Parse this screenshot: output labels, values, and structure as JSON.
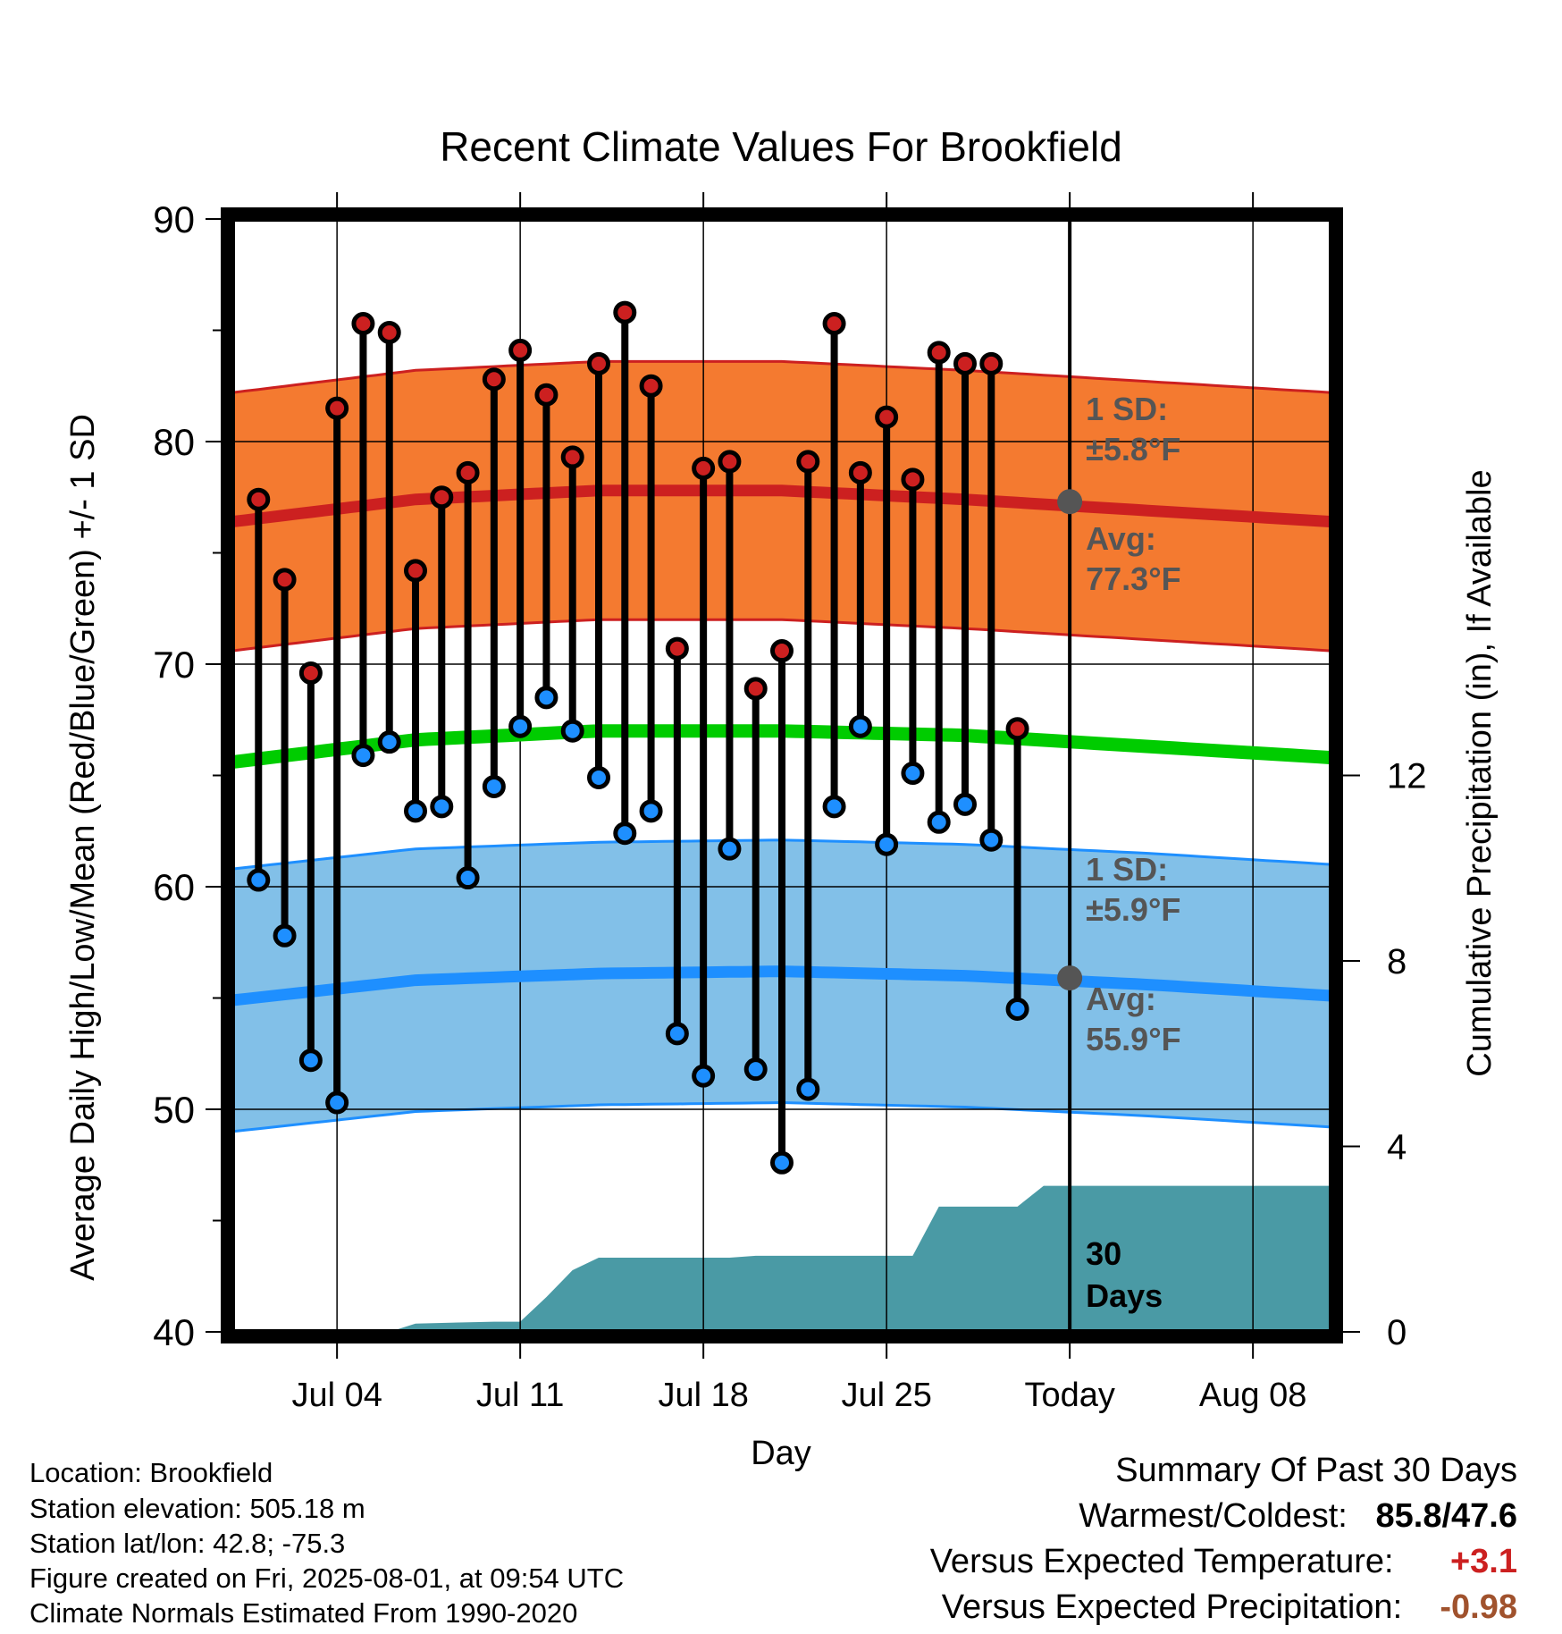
{
  "chart_data": {
    "type": "line",
    "title": "Recent Climate Values For Brookfield",
    "xlabel": "Day",
    "ylabel": "Average Daily High/Low/Mean (Red/Blue/Green) +/- 1 SD",
    "y2label": "Cumulative Precipitation (in), If Available",
    "ylim": [
      40,
      90
    ],
    "y2lim": [
      0,
      24
    ],
    "y_ticks": [
      40,
      50,
      60,
      70,
      80,
      90
    ],
    "y2_ticks": [
      0,
      4,
      8,
      12
    ],
    "xlim": [
      "2025-06-30",
      "2025-08-11"
    ],
    "x_ticks": [
      {
        "date": "2025-07-04",
        "label": "Jul 04"
      },
      {
        "date": "2025-07-11",
        "label": "Jul 11"
      },
      {
        "date": "2025-07-18",
        "label": "Jul 18"
      },
      {
        "date": "2025-07-25",
        "label": "Jul 25"
      },
      {
        "date": "2025-08-01",
        "label": "Today"
      },
      {
        "date": "2025-08-08",
        "label": "Aug 08"
      }
    ],
    "grid": true,
    "today": "2025-08-01",
    "period_label": "30 Days",
    "observed": {
      "dates": [
        "2025-07-01",
        "2025-07-02",
        "2025-07-03",
        "2025-07-04",
        "2025-07-05",
        "2025-07-06",
        "2025-07-07",
        "2025-07-08",
        "2025-07-09",
        "2025-07-10",
        "2025-07-11",
        "2025-07-12",
        "2025-07-13",
        "2025-07-14",
        "2025-07-15",
        "2025-07-16",
        "2025-07-17",
        "2025-07-18",
        "2025-07-19",
        "2025-07-20",
        "2025-07-21",
        "2025-07-22",
        "2025-07-23",
        "2025-07-24",
        "2025-07-25",
        "2025-07-26",
        "2025-07-27",
        "2025-07-28",
        "2025-07-29",
        "2025-07-30",
        "2025-07-31"
      ],
      "highs": [
        77.4,
        73.8,
        69.6,
        81.5,
        85.3,
        84.9,
        74.2,
        77.5,
        78.6,
        82.8,
        84.1,
        82.1,
        79.3,
        83.5,
        85.8,
        82.5,
        70.7,
        78.8,
        79.1,
        68.9,
        70.6,
        79.1,
        85.3,
        78.6,
        81.1,
        78.3,
        84.0,
        83.5,
        83.5,
        67.1,
        null
      ],
      "lows": [
        60.3,
        57.8,
        52.2,
        50.3,
        65.9,
        66.5,
        63.4,
        63.6,
        60.4,
        64.5,
        67.2,
        68.5,
        67.0,
        64.9,
        62.4,
        63.4,
        53.4,
        51.5,
        61.7,
        51.8,
        47.6,
        50.9,
        63.6,
        67.2,
        61.9,
        65.1,
        62.9,
        63.7,
        62.1,
        54.5,
        null
      ]
    },
    "normals": {
      "dates": [
        "2025-06-30",
        "2025-07-07",
        "2025-07-14",
        "2025-07-21",
        "2025-07-28",
        "2025-08-04",
        "2025-08-11"
      ],
      "avg_high": [
        76.4,
        77.4,
        77.8,
        77.8,
        77.4,
        76.9,
        76.4
      ],
      "avg_low": [
        54.9,
        55.8,
        56.1,
        56.2,
        56.0,
        55.6,
        55.1
      ],
      "avg_mean": [
        65.6,
        66.6,
        67.0,
        67.0,
        66.8,
        66.3,
        65.8
      ],
      "high_sd": 5.8,
      "low_sd": 5.9
    },
    "normal_callouts": {
      "high": {
        "sd_label": "1 SD:",
        "sd_value": "±5.8°F",
        "avg_label": "Avg:",
        "avg_value": "77.3°F",
        "avg": 77.3
      },
      "low": {
        "sd_label": "1 SD:",
        "sd_value": "±5.9°F",
        "avg_label": "Avg:",
        "avg_value": "55.9°F",
        "avg": 55.9
      }
    },
    "precip": {
      "dates": [
        "2025-06-30",
        "2025-07-03",
        "2025-07-04",
        "2025-07-05",
        "2025-07-06",
        "2025-07-07",
        "2025-07-10",
        "2025-07-11",
        "2025-07-12",
        "2025-07-13",
        "2025-07-14",
        "2025-07-19",
        "2025-07-20",
        "2025-07-24",
        "2025-07-26",
        "2025-07-27",
        "2025-07-30",
        "2025-07-31",
        "2025-08-11"
      ],
      "values": [
        0,
        0,
        0,
        0,
        0,
        0.18,
        0.22,
        0.22,
        0.75,
        1.33,
        1.6,
        1.6,
        1.64,
        1.64,
        1.64,
        2.7,
        2.7,
        3.15,
        3.15
      ]
    },
    "colors": {
      "high": "#cc2020",
      "high_band": "#f47a30",
      "low": "#1e8fff",
      "low_band": "#82c0e8",
      "mean": "#00cc00",
      "precip": "#4a9aa5",
      "callout": "#555555"
    }
  },
  "info": {
    "location": "Location: Brookfield",
    "elevation": "Station elevation: 505.18 m",
    "latlon": "Station lat/lon: 42.8; -75.3",
    "created": "Figure created on Fri, 2025-08-01, at 09:54 UTC",
    "normals": "Climate Normals Estimated From 1990-2020"
  },
  "summary": {
    "title": "Summary Of Past 30 Days",
    "warmest_label": "Warmest/Coldest:",
    "warmest_value": "85.8/47.6",
    "temp_label": "Versus Expected Temperature:",
    "temp_value": "+3.1",
    "precip_label": "Versus Expected Precipitation:",
    "precip_value": "-0.98",
    "temp_color": "#cc2020",
    "precip_color": "#a0522d"
  }
}
